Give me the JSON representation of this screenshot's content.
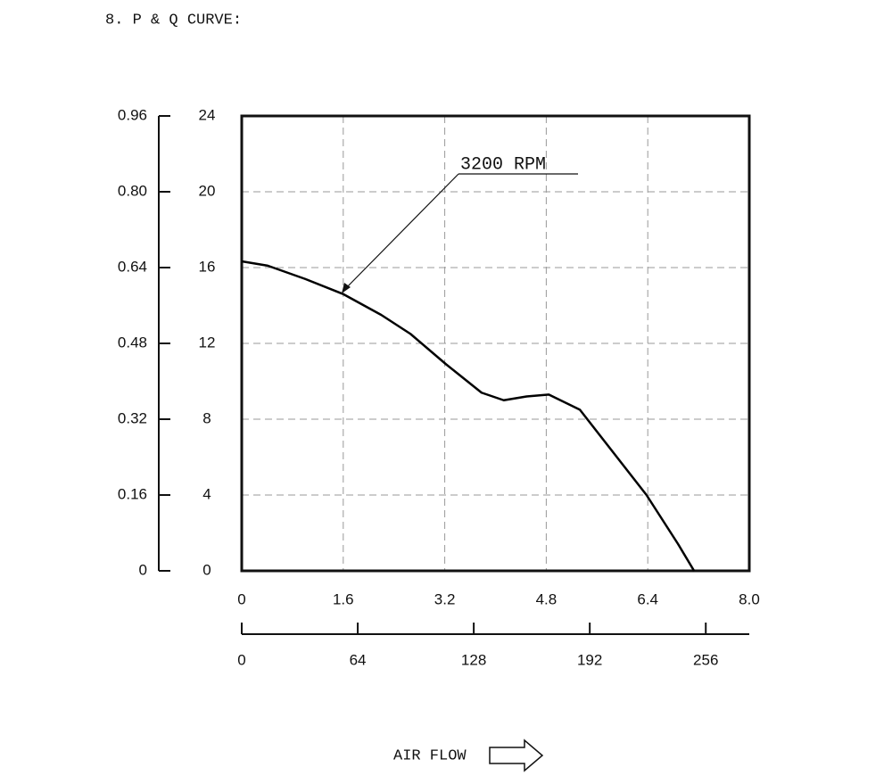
{
  "chart_data": {
    "type": "line",
    "title": "8. P & Q CURVE:",
    "xlabel": "AIR FLOW",
    "x": [
      0,
      0.41,
      1.0,
      1.6,
      2.2,
      2.66,
      3.22,
      3.78,
      4.13,
      4.49,
      4.84,
      5.33,
      5.89,
      6.38,
      6.88,
      7.13
    ],
    "series": [
      {
        "name": "3200 RPM",
        "color": "#000000",
        "values": [
          16.33,
          16.1,
          15.4,
          14.6,
          13.5,
          12.5,
          10.9,
          9.4,
          9.0,
          9.2,
          9.3,
          8.5,
          6.1,
          4.0,
          1.4,
          0
        ]
      }
    ],
    "xlim": [
      0,
      8
    ],
    "xticks": [
      0,
      1.6,
      3.2,
      4.8,
      6.4,
      {
        "value": 8,
        "label": "8.0"
      }
    ],
    "x2lim": [
      0,
      280
    ],
    "x2ticks": [
      0,
      64,
      128,
      192,
      256
    ],
    "ylim": [
      0,
      24
    ],
    "yticks": [
      0,
      4,
      8,
      12,
      16,
      20,
      24
    ],
    "y2lim": [
      0,
      0.96
    ],
    "y2ticks": [
      0,
      0.16,
      0.32,
      0.48,
      0.64,
      {
        "value": 0.8,
        "label": "0.80"
      },
      0.96
    ],
    "grid": true
  }
}
